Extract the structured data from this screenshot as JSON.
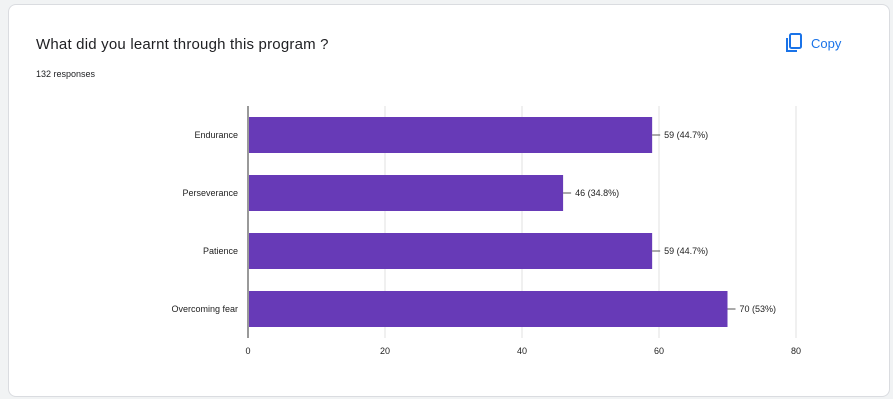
{
  "question": {
    "title": "What did you learnt through this program ?",
    "responses": "132 responses"
  },
  "copy_button": {
    "label": "Copy",
    "icon": "copy-icon"
  },
  "colors": {
    "bar": "#673ab7",
    "accent": "#1a73e8",
    "grid": "#e0e0e0",
    "axis": "#333333"
  },
  "chart_data": {
    "type": "bar",
    "orientation": "horizontal",
    "categories": [
      "Endurance",
      "Perseverance",
      "Patience",
      "Overcoming fear"
    ],
    "values": [
      59,
      46,
      59,
      70
    ],
    "data_labels": [
      "59 (44.7%)",
      "46 (34.8%)",
      "59 (44.7%)",
      "70 (53%)"
    ],
    "xlim": [
      0,
      80
    ],
    "xticks": [
      0,
      20,
      40,
      60,
      80
    ],
    "grid": true,
    "legend": "none"
  }
}
